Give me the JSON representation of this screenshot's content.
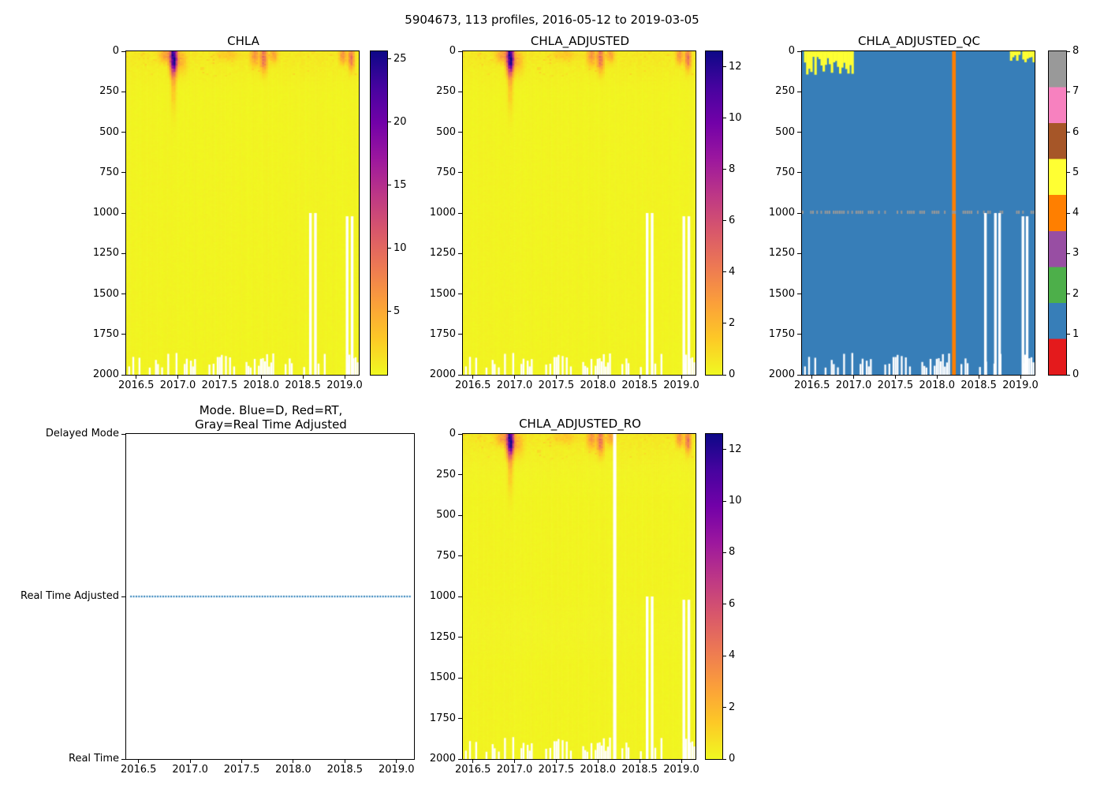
{
  "figure": {
    "title": "5904673, 113 profiles, 2016-05-12 to 2019-03-05"
  },
  "chart_data": [
    {
      "type": "heatmap",
      "title": "CHLA",
      "n_profiles": 113,
      "x_range": [
        2016.38,
        2019.17
      ],
      "x_tick_values": [
        2016.5,
        2017.0,
        2017.5,
        2018.0,
        2018.5,
        2019.0
      ],
      "x_tick_labels": [
        "2016.5",
        "2017.0",
        "2017.5",
        "2018.0",
        "2018.5",
        "2019.0"
      ],
      "y_range": [
        0,
        2000
      ],
      "y_axis_inverted": true,
      "y_tick_values": [
        0,
        250,
        500,
        750,
        1000,
        1250,
        1500,
        1750,
        2000
      ],
      "y_tick_labels": [
        "0",
        "250",
        "500",
        "750",
        "1000",
        "1250",
        "1500",
        "1750",
        "2000"
      ],
      "colormap": "plasma_r",
      "vmin": 0,
      "vmax": 25.6,
      "colorbar_ticks": [
        5,
        10,
        15,
        20,
        25
      ],
      "background_level": 0.3,
      "surface_band": {
        "depth": 280,
        "extra": 1.0
      },
      "blooms": [
        {
          "x": 2016.95,
          "depth": 45,
          "amplitude": 25,
          "sx": 0.03,
          "sd": 60
        },
        {
          "x": 2016.95,
          "depth": 160,
          "amplitude": 4,
          "sx": 0.022,
          "sd": 130
        },
        {
          "x": 2016.85,
          "depth": 25,
          "amplitude": 5,
          "sx": 0.05,
          "sd": 30
        },
        {
          "x": 2017.05,
          "depth": 60,
          "amplitude": 3.5,
          "sx": 0.04,
          "sd": 50
        },
        {
          "x": 2017.6,
          "depth": 20,
          "amplitude": 2.2,
          "sx": 0.09,
          "sd": 28
        },
        {
          "x": 2017.92,
          "depth": 30,
          "amplitude": 6,
          "sx": 0.035,
          "sd": 40
        },
        {
          "x": 2018.03,
          "depth": 45,
          "amplitude": 9.5,
          "sx": 0.028,
          "sd": 55
        },
        {
          "x": 2018.15,
          "depth": 25,
          "amplitude": 5,
          "sx": 0.03,
          "sd": 30
        },
        {
          "x": 2018.98,
          "depth": 25,
          "amplitude": 6.5,
          "sx": 0.028,
          "sd": 35
        },
        {
          "x": 2019.08,
          "depth": 40,
          "amplitude": 9,
          "sx": 0.024,
          "sd": 50
        }
      ],
      "missing_columns": [
        {
          "x": 2018.59,
          "from_depth": 1000
        },
        {
          "x": 2018.65,
          "from_depth": 1000
        },
        {
          "x": 2019.03,
          "from_depth": 1020
        },
        {
          "x": 2019.09,
          "from_depth": 1020
        }
      ],
      "full_missing_columns": []
    },
    {
      "type": "heatmap",
      "title": "CHLA_ADJUSTED",
      "n_profiles": 113,
      "x_range": [
        2016.38,
        2019.17
      ],
      "x_tick_values": [
        2016.5,
        2017.0,
        2017.5,
        2018.0,
        2018.5,
        2019.0
      ],
      "x_tick_labels": [
        "2016.5",
        "2017.0",
        "2017.5",
        "2018.0",
        "2018.5",
        "2019.0"
      ],
      "y_range": [
        0,
        2000
      ],
      "y_axis_inverted": true,
      "y_tick_values": [
        0,
        250,
        500,
        750,
        1000,
        1250,
        1500,
        1750,
        2000
      ],
      "y_tick_labels": [
        "0",
        "250",
        "500",
        "750",
        "1000",
        "1250",
        "1500",
        "1750",
        "2000"
      ],
      "colormap": "plasma_r",
      "vmin": 0,
      "vmax": 12.6,
      "colorbar_ticks": [
        0,
        2,
        4,
        6,
        8,
        10,
        12
      ],
      "background_level": 0.15,
      "surface_band": {
        "depth": 280,
        "extra": 0.5
      },
      "blooms": [
        {
          "x": 2016.95,
          "depth": 45,
          "amplitude": 12.4,
          "sx": 0.03,
          "sd": 60
        },
        {
          "x": 2016.95,
          "depth": 160,
          "amplitude": 2,
          "sx": 0.022,
          "sd": 130
        },
        {
          "x": 2016.85,
          "depth": 25,
          "amplitude": 2.5,
          "sx": 0.05,
          "sd": 30
        },
        {
          "x": 2017.05,
          "depth": 60,
          "amplitude": 1.7,
          "sx": 0.04,
          "sd": 50
        },
        {
          "x": 2017.6,
          "depth": 20,
          "amplitude": 1.1,
          "sx": 0.09,
          "sd": 28
        },
        {
          "x": 2017.92,
          "depth": 30,
          "amplitude": 3,
          "sx": 0.035,
          "sd": 40
        },
        {
          "x": 2018.03,
          "depth": 45,
          "amplitude": 4.7,
          "sx": 0.028,
          "sd": 55
        },
        {
          "x": 2018.15,
          "depth": 25,
          "amplitude": 2.5,
          "sx": 0.03,
          "sd": 30
        },
        {
          "x": 2018.98,
          "depth": 25,
          "amplitude": 3.2,
          "sx": 0.028,
          "sd": 35
        },
        {
          "x": 2019.08,
          "depth": 40,
          "amplitude": 4.5,
          "sx": 0.024,
          "sd": 50
        }
      ],
      "missing_columns": [
        {
          "x": 2018.59,
          "from_depth": 1000
        },
        {
          "x": 2018.65,
          "from_depth": 1000
        },
        {
          "x": 2019.03,
          "from_depth": 1020
        },
        {
          "x": 2019.09,
          "from_depth": 1020
        }
      ],
      "full_missing_columns": []
    },
    {
      "type": "qc_heatmap",
      "title": "CHLA_ADJUSTED_QC",
      "n_profiles": 113,
      "x_range": [
        2016.38,
        2019.17
      ],
      "x_tick_values": [
        2016.5,
        2017.0,
        2017.5,
        2018.0,
        2018.5,
        2019.0
      ],
      "x_tick_labels": [
        "2016.5",
        "2017.0",
        "2017.5",
        "2018.0",
        "2018.5",
        "2019.0"
      ],
      "y_range": [
        0,
        2000
      ],
      "y_axis_inverted": true,
      "y_tick_values": [
        0,
        250,
        500,
        750,
        1000,
        1250,
        1500,
        1750,
        2000
      ],
      "y_tick_labels": [
        "0",
        "250",
        "500",
        "750",
        "1000",
        "1250",
        "1500",
        "1750",
        "2000"
      ],
      "colormap": "Set1",
      "qc_colors": [
        "#e41a1c",
        "#377eb8",
        "#4daf4a",
        "#984ea3",
        "#ff7f00",
        "#ffff33",
        "#a65628",
        "#f781bf",
        "#999999"
      ],
      "colorbar_ticks": [
        0,
        1,
        2,
        3,
        4,
        5,
        6,
        7,
        8
      ],
      "base_qc_value": 1,
      "qc5_surface_regions": [
        {
          "x0": 2016.4,
          "x1": 2017.0,
          "max_depth": 170
        },
        {
          "x0": 2018.88,
          "x1": 2019.0,
          "max_depth": 60
        },
        {
          "x0": 2019.02,
          "x1": 2019.17,
          "max_depth": 90
        }
      ],
      "qc4_columns": [
        {
          "x": 2018.2,
          "width_profiles": 2
        }
      ],
      "qc8_dash_row": {
        "depth": 985,
        "thickness_m": 20
      },
      "missing_columns": [
        {
          "x": 2018.58,
          "from_depth": 1000
        },
        {
          "x": 2018.7,
          "from_depth": 1000
        },
        {
          "x": 2018.75,
          "from_depth": 1000
        },
        {
          "x": 2019.03,
          "from_depth": 1020
        },
        {
          "x": 2019.08,
          "from_depth": 1020
        }
      ]
    },
    {
      "type": "line",
      "title": "Mode. Blue=D, Red=RT,\nGray=Real Time Adjusted",
      "x_range": [
        2016.38,
        2019.17
      ],
      "x_tick_values": [
        2016.5,
        2017.0,
        2017.5,
        2018.0,
        2018.5,
        2019.0
      ],
      "x_tick_labels": [
        "2016.5",
        "2017.0",
        "2017.5",
        "2018.0",
        "2018.5",
        "2019.0"
      ],
      "y_categories": [
        "Real Time",
        "Real Time Adjusted",
        "Delayed Mode"
      ],
      "series": [
        {
          "name": "mode",
          "value": "Real Time Adjusted",
          "color": "#1f77b4",
          "marker": "dotted",
          "x_start": 2016.42,
          "x_end": 2019.13
        }
      ]
    },
    {
      "type": "heatmap",
      "title": "CHLA_ADJUSTED_RO",
      "n_profiles": 113,
      "x_range": [
        2016.38,
        2019.17
      ],
      "x_tick_values": [
        2016.5,
        2017.0,
        2017.5,
        2018.0,
        2018.5,
        2019.0
      ],
      "x_tick_labels": [
        "2016.5",
        "2017.0",
        "2017.5",
        "2018.0",
        "2018.5",
        "2019.0"
      ],
      "y_range": [
        0,
        2000
      ],
      "y_axis_inverted": true,
      "y_tick_values": [
        0,
        250,
        500,
        750,
        1000,
        1250,
        1500,
        1750,
        2000
      ],
      "y_tick_labels": [
        "0",
        "250",
        "500",
        "750",
        "1000",
        "1250",
        "1500",
        "1750",
        "2000"
      ],
      "colormap": "plasma_r",
      "vmin": 0,
      "vmax": 12.6,
      "colorbar_ticks": [
        0,
        2,
        4,
        6,
        8,
        10,
        12
      ],
      "background_level": 0.15,
      "surface_band": {
        "depth": 280,
        "extra": 0.5
      },
      "blooms": [
        {
          "x": 2016.95,
          "depth": 45,
          "amplitude": 12.4,
          "sx": 0.03,
          "sd": 60
        },
        {
          "x": 2016.95,
          "depth": 160,
          "amplitude": 2,
          "sx": 0.022,
          "sd": 130
        },
        {
          "x": 2016.85,
          "depth": 25,
          "amplitude": 2.5,
          "sx": 0.05,
          "sd": 30
        },
        {
          "x": 2017.05,
          "depth": 60,
          "amplitude": 1.7,
          "sx": 0.04,
          "sd": 50
        },
        {
          "x": 2017.6,
          "depth": 20,
          "amplitude": 1.1,
          "sx": 0.09,
          "sd": 28
        },
        {
          "x": 2017.92,
          "depth": 30,
          "amplitude": 3,
          "sx": 0.035,
          "sd": 40
        },
        {
          "x": 2018.03,
          "depth": 45,
          "amplitude": 4.7,
          "sx": 0.028,
          "sd": 55
        },
        {
          "x": 2018.15,
          "depth": 25,
          "amplitude": 2.5,
          "sx": 0.03,
          "sd": 30
        },
        {
          "x": 2018.98,
          "depth": 25,
          "amplitude": 3.2,
          "sx": 0.028,
          "sd": 35
        },
        {
          "x": 2019.08,
          "depth": 40,
          "amplitude": 4.5,
          "sx": 0.024,
          "sd": 50
        }
      ],
      "missing_columns": [
        {
          "x": 2018.59,
          "from_depth": 1000
        },
        {
          "x": 2018.65,
          "from_depth": 1000
        },
        {
          "x": 2019.03,
          "from_depth": 1020
        },
        {
          "x": 2019.09,
          "from_depth": 1020
        }
      ],
      "full_missing_columns": [
        {
          "x": 2018.2
        }
      ]
    }
  ]
}
